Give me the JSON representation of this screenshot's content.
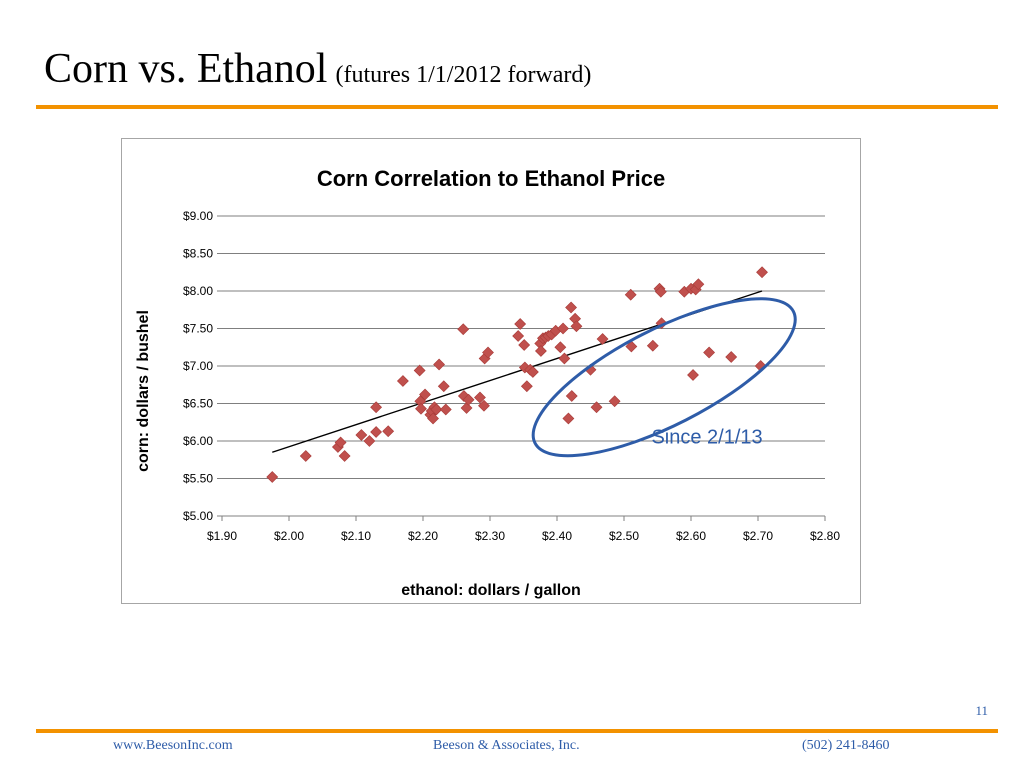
{
  "slide": {
    "title": "Corn vs. Ethanol",
    "subtitle": "(futures    1/1/2012 forward)",
    "page_number": "11"
  },
  "footer": {
    "website": "www.BeesonInc.com",
    "company": "Beeson & Associates, Inc.",
    "phone": "(502) 241-8460"
  },
  "colors": {
    "accent_rule": "#f39200",
    "marker": "#c0504d",
    "highlight_ellipse": "#2e5ca8",
    "footer_text": "#2e5ca8"
  },
  "chart_data": {
    "type": "scatter",
    "title": "Corn Correlation to Ethanol Price",
    "xlabel": "ethanol:  dollars / gallon",
    "ylabel": "corn:  dollars / bushel",
    "xlim": [
      1.9,
      2.8
    ],
    "ylim": [
      5.0,
      9.0
    ],
    "x_ticks": [
      1.9,
      2.0,
      2.1,
      2.2,
      2.3,
      2.4,
      2.5,
      2.6,
      2.7,
      2.8
    ],
    "x_tick_labels": [
      "$1.90",
      "$2.00",
      "$2.10",
      "$2.20",
      "$2.30",
      "$2.40",
      "$2.50",
      "$2.60",
      "$2.70",
      "$2.80"
    ],
    "y_ticks": [
      5.0,
      5.5,
      6.0,
      6.5,
      7.0,
      7.5,
      8.0,
      8.5,
      9.0
    ],
    "y_tick_labels": [
      "$5.00",
      "$5.50",
      "$6.00",
      "$6.50",
      "$7.00",
      "$7.50",
      "$8.00",
      "$8.50",
      "$9.00"
    ],
    "grid": "horizontal",
    "legend": "none",
    "marker": "diamond",
    "series": [
      {
        "points": [
          [
            1.975,
            5.52
          ],
          [
            2.025,
            5.8
          ],
          [
            2.073,
            5.92
          ],
          [
            2.077,
            5.98
          ],
          [
            2.083,
            5.8
          ],
          [
            2.108,
            6.08
          ],
          [
            2.12,
            6.0
          ],
          [
            2.13,
            6.12
          ],
          [
            2.13,
            6.45
          ],
          [
            2.148,
            6.13
          ],
          [
            2.17,
            6.8
          ],
          [
            2.195,
            6.94
          ],
          [
            2.196,
            6.53
          ],
          [
            2.197,
            6.43
          ],
          [
            2.203,
            6.62
          ],
          [
            2.211,
            6.35
          ],
          [
            2.213,
            6.4
          ],
          [
            2.215,
            6.3
          ],
          [
            2.217,
            6.45
          ],
          [
            2.22,
            6.42
          ],
          [
            2.224,
            7.02
          ],
          [
            2.231,
            6.73
          ],
          [
            2.234,
            6.42
          ],
          [
            2.26,
            7.49
          ],
          [
            2.261,
            6.6
          ],
          [
            2.265,
            6.44
          ],
          [
            2.268,
            6.55
          ],
          [
            2.285,
            6.58
          ],
          [
            2.291,
            6.47
          ],
          [
            2.292,
            7.1
          ],
          [
            2.297,
            7.18
          ],
          [
            2.342,
            7.4
          ],
          [
            2.345,
            7.56
          ],
          [
            2.351,
            7.28
          ],
          [
            2.352,
            6.98
          ],
          [
            2.355,
            6.73
          ],
          [
            2.36,
            6.95
          ],
          [
            2.364,
            6.92
          ],
          [
            2.375,
            7.3
          ],
          [
            2.376,
            7.2
          ],
          [
            2.379,
            7.37
          ],
          [
            2.383,
            7.38
          ],
          [
            2.387,
            7.4
          ],
          [
            2.392,
            7.42
          ],
          [
            2.398,
            7.47
          ],
          [
            2.405,
            7.25
          ],
          [
            2.409,
            7.5
          ],
          [
            2.411,
            7.1
          ],
          [
            2.417,
            6.3
          ],
          [
            2.421,
            7.78
          ],
          [
            2.422,
            6.6
          ],
          [
            2.427,
            7.63
          ],
          [
            2.429,
            7.53
          ],
          [
            2.45,
            6.95
          ],
          [
            2.459,
            6.45
          ],
          [
            2.468,
            7.36
          ],
          [
            2.486,
            6.53
          ],
          [
            2.51,
            7.95
          ],
          [
            2.511,
            7.26
          ],
          [
            2.543,
            7.27
          ],
          [
            2.553,
            8.03
          ],
          [
            2.555,
            7.99
          ],
          [
            2.556,
            7.57
          ],
          [
            2.59,
            7.99
          ],
          [
            2.6,
            8.03
          ],
          [
            2.603,
            6.88
          ],
          [
            2.607,
            8.02
          ],
          [
            2.611,
            8.09
          ],
          [
            2.627,
            7.18
          ],
          [
            2.66,
            7.12
          ],
          [
            2.704,
            7.0
          ],
          [
            2.706,
            8.25
          ]
        ]
      }
    ],
    "trendline": {
      "type": "linear",
      "x": [
        1.975,
        2.706
      ],
      "y": [
        5.85,
        8.0
      ]
    },
    "annotations": [
      {
        "text": "Since 2/1/13",
        "shape": "ellipse",
        "encloses": "points from 2.42 to 2.71 with corn below 7.6"
      }
    ]
  }
}
